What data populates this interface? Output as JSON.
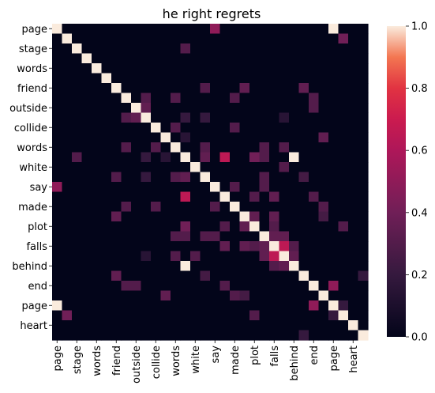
{
  "chart_data": {
    "type": "heatmap",
    "title": "he right regrets",
    "xlabel": "",
    "ylabel": "",
    "labels": [
      "page",
      "page",
      "stage",
      "stage",
      "words",
      "words",
      "friend",
      "friend",
      "outside",
      "outside",
      "collide",
      "collide",
      "words",
      "words",
      "white",
      "white",
      "say",
      "say",
      "made",
      "made",
      "plot",
      "plot",
      "falls",
      "falls",
      "behind",
      "behind",
      "end",
      "end",
      "page",
      "page",
      "heart",
      "heart"
    ],
    "tick_labels": [
      "page",
      "stage",
      "words",
      "friend",
      "outside",
      "collide",
      "words",
      "white",
      "say",
      "made",
      "plot",
      "falls",
      "behind",
      "end",
      "page",
      "heart"
    ],
    "n": 32,
    "vmin": 0.0,
    "vmax": 1.0,
    "colorbar_ticks": [
      0.0,
      0.2,
      0.4,
      0.6,
      0.8,
      1.0
    ],
    "colorbar_tick_labels": [
      "0.0",
      "0.2",
      "0.4",
      "0.6",
      "0.8",
      "1.0"
    ],
    "cells": [
      [
        0,
        16,
        0.5
      ],
      [
        0,
        28,
        1.0
      ],
      [
        1,
        29,
        0.4
      ],
      [
        2,
        13,
        0.3
      ],
      [
        6,
        15,
        0.3
      ],
      [
        6,
        19,
        0.35
      ],
      [
        6,
        25,
        0.35
      ],
      [
        7,
        9,
        0.3
      ],
      [
        7,
        12,
        0.3
      ],
      [
        7,
        18,
        0.3
      ],
      [
        7,
        26,
        0.3
      ],
      [
        8,
        9,
        0.35
      ],
      [
        8,
        26,
        0.3
      ],
      [
        9,
        13,
        0.2
      ],
      [
        9,
        15,
        0.2
      ],
      [
        9,
        23,
        0.15
      ],
      [
        10,
        12,
        0.3
      ],
      [
        10,
        18,
        0.3
      ],
      [
        11,
        13,
        0.15
      ],
      [
        11,
        27,
        0.35
      ],
      [
        12,
        15,
        0.3
      ],
      [
        12,
        21,
        0.3
      ],
      [
        12,
        23,
        0.3
      ],
      [
        13,
        15,
        0.35
      ],
      [
        13,
        17,
        0.65
      ],
      [
        13,
        20,
        0.4
      ],
      [
        13,
        21,
        0.3
      ],
      [
        13,
        24,
        1.0
      ],
      [
        14,
        23,
        0.3
      ],
      [
        15,
        21,
        0.3
      ],
      [
        15,
        25,
        0.25
      ],
      [
        16,
        18,
        0.3
      ],
      [
        16,
        21,
        0.3
      ],
      [
        17,
        20,
        0.3
      ],
      [
        17,
        22,
        0.35
      ],
      [
        17,
        26,
        0.3
      ],
      [
        18,
        27,
        0.3
      ],
      [
        19,
        20,
        0.35
      ],
      [
        19,
        22,
        0.35
      ],
      [
        19,
        27,
        0.25
      ],
      [
        20,
        22,
        0.3
      ],
      [
        20,
        29,
        0.3
      ],
      [
        21,
        22,
        0.35
      ],
      [
        21,
        23,
        0.35
      ],
      [
        22,
        23,
        0.65
      ],
      [
        22,
        24,
        0.3
      ],
      [
        23,
        24,
        0.35
      ],
      [
        25,
        31,
        0.2
      ],
      [
        26,
        28,
        0.5
      ],
      [
        28,
        29,
        0.2
      ]
    ]
  }
}
